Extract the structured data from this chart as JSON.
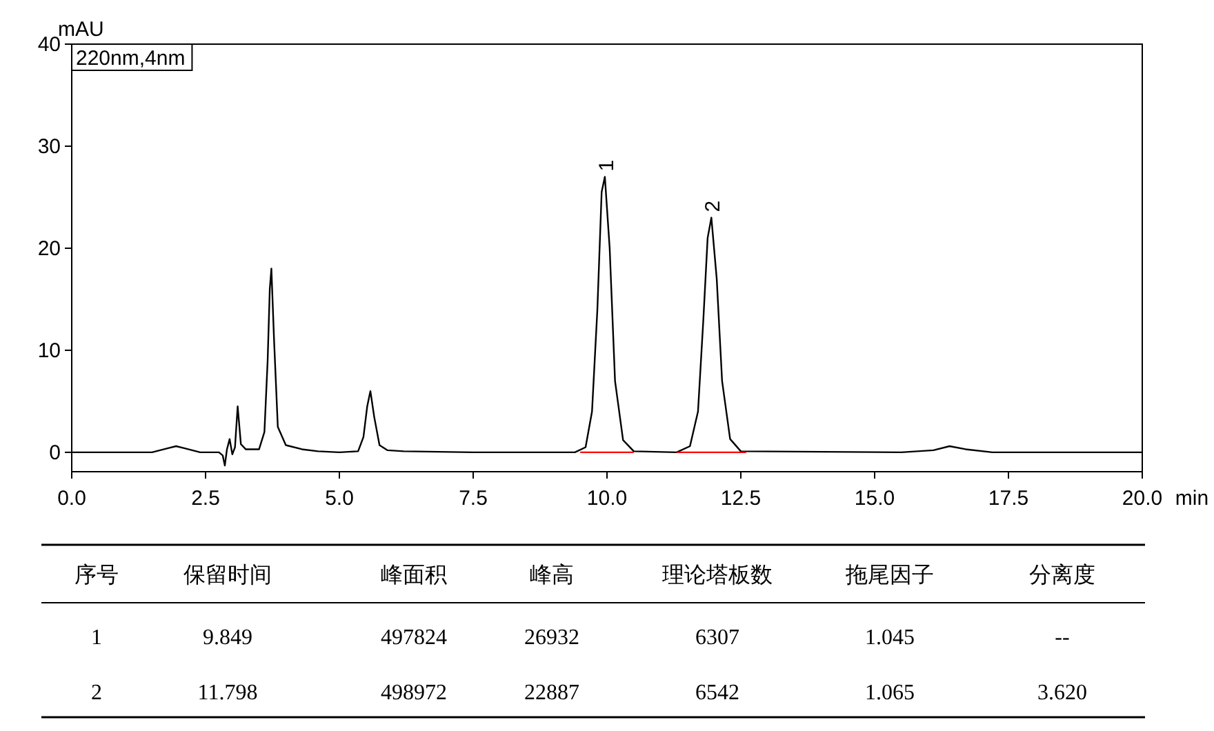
{
  "chart_data": {
    "type": "line",
    "ylabel": "mAU",
    "xlabel": "min",
    "xlim": [
      0,
      20
    ],
    "ylim": [
      -1.9,
      40
    ],
    "xticks": [
      {
        "value": 0,
        "label": "0.0"
      },
      {
        "value": 2.5,
        "label": "2.5"
      },
      {
        "value": 5,
        "label": "5.0"
      },
      {
        "value": 7.5,
        "label": "7.5"
      },
      {
        "value": 10,
        "label": "10.0"
      },
      {
        "value": 12.5,
        "label": "12.5"
      },
      {
        "value": 15,
        "label": "15.0"
      },
      {
        "value": 17.5,
        "label": "17.5"
      },
      {
        "value": 20,
        "label": "20.0"
      }
    ],
    "yticks": [
      0,
      10,
      20,
      30,
      40
    ],
    "grid": false,
    "series": [
      {
        "color": "#000000",
        "x": [
          0,
          1.5,
          1.8,
          1.95,
          2.1,
          2.4,
          2.75,
          2.82,
          2.86,
          2.9,
          2.95,
          3.0,
          3.05,
          3.1,
          3.16,
          3.25,
          3.5,
          3.6,
          3.66,
          3.7,
          3.73,
          3.78,
          3.85,
          4.0,
          4.3,
          4.6,
          5.0,
          5.35,
          5.45,
          5.52,
          5.58,
          5.65,
          5.75,
          5.9,
          6.2,
          7.5,
          9.4,
          9.6,
          9.72,
          9.82,
          9.9,
          9.96,
          10.05,
          10.15,
          10.3,
          10.5,
          11.3,
          11.55,
          11.7,
          11.8,
          11.88,
          11.95,
          12.05,
          12.15,
          12.3,
          12.5,
          15.5,
          16.1,
          16.4,
          16.7,
          17.2,
          20
        ],
        "values": [
          0,
          0,
          0.4,
          0.6,
          0.4,
          0,
          0,
          -0.3,
          -1.3,
          0.3,
          1.3,
          -0.2,
          0.5,
          4.5,
          0.8,
          0.3,
          0.3,
          2,
          9,
          16,
          18,
          11,
          2.5,
          0.7,
          0.3,
          0.1,
          0,
          0.1,
          1.5,
          4.5,
          6,
          3.5,
          0.7,
          0.2,
          0.1,
          0,
          0,
          0.5,
          4,
          14,
          25.5,
          27,
          20,
          7,
          1.2,
          0.1,
          0,
          0.6,
          4,
          13,
          21,
          23,
          17,
          7,
          1.3,
          0.1,
          0,
          0.2,
          0.6,
          0.3,
          0,
          0
        ]
      },
      {
        "color": "#ff0000",
        "x": [
          9.5,
          10.5
        ],
        "values": [
          0,
          0
        ]
      },
      {
        "color": "#ff0000",
        "x": [
          11.3,
          12.6
        ],
        "values": [
          0,
          0
        ]
      }
    ],
    "annotations": [
      "220nm,4nm",
      {
        "text": "1",
        "x": 9.96,
        "y": 27
      },
      {
        "text": "2",
        "x": 11.95,
        "y": 23
      },
      "序号",
      "保留时间",
      "峰面积",
      "峰高",
      "理论塔板数",
      "拖尾因子",
      "分离度",
      "1",
      "9.849",
      "497824",
      "26932",
      "6307",
      "1.045",
      "--",
      "2",
      "11.798",
      "498972",
      "22887",
      "6542",
      "1.065",
      "3.620"
    ]
  }
}
